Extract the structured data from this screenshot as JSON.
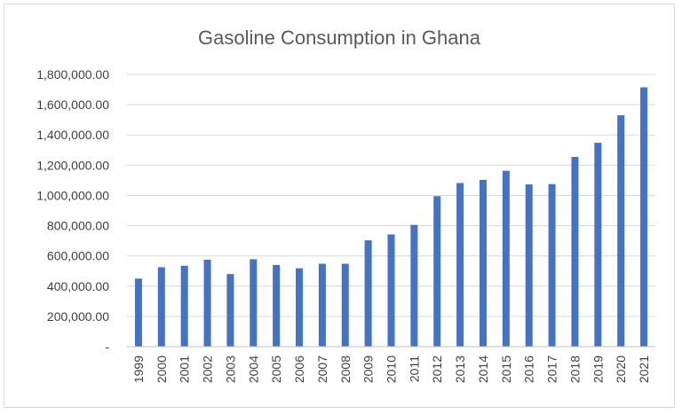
{
  "chart_data": {
    "type": "bar",
    "title": "Gasoline Consumption in Ghana",
    "xlabel": "",
    "ylabel": "",
    "categories": [
      "1999",
      "2000",
      "2001",
      "2002",
      "2003",
      "2004",
      "2005",
      "2006",
      "2007",
      "2008",
      "2009",
      "2010",
      "2011",
      "2012",
      "2013",
      "2014",
      "2015",
      "2016",
      "2017",
      "2018",
      "2019",
      "2020",
      "2021"
    ],
    "values": [
      450000,
      525000,
      535000,
      575000,
      480000,
      578000,
      540000,
      518000,
      548000,
      548000,
      703000,
      742000,
      805000,
      995000,
      1082000,
      1103000,
      1163000,
      1073000,
      1075000,
      1255000,
      1348000,
      1530000,
      1715000
    ],
    "ylim": [
      0,
      1800000
    ],
    "y_ticks": [
      0,
      200000,
      400000,
      600000,
      800000,
      1000000,
      1200000,
      1400000,
      1600000,
      1800000
    ],
    "y_tick_labels": [
      "-",
      "200,000.00",
      "400,000.00",
      "600,000.00",
      "800,000.00",
      "1,000,000.00",
      "1,200,000.00",
      "1,400,000.00",
      "1,600,000.00",
      "1,800,000.00"
    ],
    "grid": true,
    "legend": "none",
    "bar_color": "#4472C4",
    "grid_color": "#d9d9d9",
    "axis_color": "#bfbfbf"
  }
}
